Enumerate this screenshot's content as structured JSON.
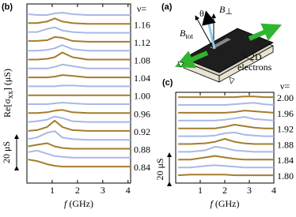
{
  "chart_data": [
    {
      "type": "line",
      "panel_label": "(b)",
      "legend_title": "ν=",
      "ylabel": [
        "Re[σ",
        "xx",
        "] (μS)"
      ],
      "xlabel": [
        "f",
        " (GHz)"
      ],
      "scale_bar": {
        "value": 20,
        "label": "20 μS"
      },
      "xlim": [
        0,
        4.1
      ],
      "xticks": [
        1,
        2,
        3,
        4
      ],
      "x": [
        0.05,
        0.4,
        0.8,
        1.1,
        1.4,
        1.8,
        2.4,
        3,
        3.6,
        4.1
      ],
      "series": [
        {
          "name": null,
          "color": "#a9b8e6",
          "values": [
            1,
            0.5,
            0.5,
            1.5,
            2,
            1,
            0.5,
            0.5,
            0.5,
            0.5
          ]
        },
        {
          "name": "1.16",
          "color": "#a57c2c",
          "values": [
            1,
            1,
            2,
            4,
            2,
            1,
            0.5,
            0.5,
            0.5,
            0.5
          ]
        },
        {
          "name": null,
          "color": "#a9b8e6",
          "values": [
            1,
            1,
            3,
            4,
            2,
            1,
            0.5,
            0.5,
            0.5,
            0.5
          ]
        },
        {
          "name": "1.12",
          "color": "#a57c2c",
          "values": [
            1,
            1,
            1.5,
            3.5,
            3,
            1,
            0.5,
            0.5,
            0.5,
            0.5
          ]
        },
        {
          "name": null,
          "color": "#a9b8e6",
          "values": [
            0.5,
            0.5,
            1,
            2,
            4,
            1.5,
            0.5,
            0.5,
            0.5,
            0.5
          ]
        },
        {
          "name": "1.08",
          "color": "#a57c2c",
          "values": [
            0.5,
            0.5,
            1,
            2,
            5,
            2,
            0.5,
            0.5,
            0.5,
            0.5
          ]
        },
        {
          "name": null,
          "color": "#a9b8e6",
          "values": [
            0.5,
            0.5,
            0.5,
            1.5,
            3,
            2,
            0.5,
            0.5,
            0.5,
            0.5
          ]
        },
        {
          "name": "1.04",
          "color": "#a57c2c",
          "values": [
            0.5,
            0.5,
            0.5,
            1,
            2,
            1.5,
            0.5,
            0.5,
            0.5,
            0.5
          ]
        },
        {
          "name": null,
          "color": "#a9b8e6",
          "values": [
            0.5,
            0.5,
            0.5,
            0.5,
            1,
            1,
            0.5,
            0.5,
            0.5,
            0.5
          ]
        },
        {
          "name": "1.00",
          "color": "#a57c2c",
          "values": [
            0.5,
            0.5,
            0.5,
            0.5,
            0.5,
            0.5,
            0.5,
            0.5,
            0.5,
            0.5
          ]
        },
        {
          "name": null,
          "color": "#a9b8e6",
          "values": [
            0.5,
            0.5,
            0.5,
            1,
            1.5,
            1,
            0.5,
            0.5,
            0.5,
            0.5
          ]
        },
        {
          "name": "0.96",
          "color": "#a57c2c",
          "values": [
            0.5,
            0.5,
            1,
            2,
            2.5,
            1,
            0.5,
            0.5,
            0.5,
            0.5
          ]
        },
        {
          "name": null,
          "color": "#a9b8e6",
          "values": [
            0.5,
            1,
            2,
            4,
            3,
            1,
            0.5,
            0.5,
            0.5,
            0.5
          ]
        },
        {
          "name": "0.92",
          "color": "#a57c2c",
          "values": [
            0.5,
            1,
            3,
            7,
            3,
            1,
            0.5,
            0.5,
            0.5,
            0.5
          ]
        },
        {
          "name": null,
          "color": "#a9b8e6",
          "values": [
            1,
            2,
            5,
            6,
            2,
            1,
            0.5,
            0.5,
            0.5,
            0.5
          ]
        },
        {
          "name": "0.88",
          "color": "#a57c2c",
          "values": [
            2,
            3,
            4,
            2,
            1,
            0.5,
            0.5,
            0.5,
            0.5,
            0.5
          ]
        },
        {
          "name": null,
          "color": "#a9b8e6",
          "values": [
            4,
            5,
            3,
            1.5,
            1,
            0.5,
            0.5,
            0.5,
            0.5,
            0.5
          ]
        },
        {
          "name": "0.84",
          "color": "#a57c2c",
          "values": [
            5,
            4,
            2,
            1,
            0.5,
            0.5,
            0.5,
            0.5,
            0.5,
            0.5
          ]
        }
      ]
    },
    {
      "type": "line",
      "panel_label": "(c)",
      "legend_title": "ν=",
      "xlabel": [
        "f",
        " (GHz)"
      ],
      "scale_bar": {
        "value": 20,
        "label": "20 μS"
      },
      "xlim": [
        0,
        4
      ],
      "xticks": [
        1,
        2,
        3,
        4
      ],
      "x": [
        0.1,
        0.6,
        1.2,
        1.6,
        2,
        2.4,
        2.8,
        3.2,
        3.6,
        4
      ],
      "series": [
        {
          "name": "2.00",
          "color": "#a57c2c",
          "values": [
            0.5,
            0.5,
            0.5,
            0.5,
            0.5,
            0.5,
            1,
            1,
            0.5,
            0.5
          ]
        },
        {
          "name": null,
          "color": "#a9b8e6",
          "values": [
            0.5,
            0.5,
            0.5,
            0.5,
            0.5,
            1,
            1.5,
            2,
            1,
            0.5
          ]
        },
        {
          "name": "1.96",
          "color": "#a57c2c",
          "values": [
            0.5,
            0.5,
            0.5,
            0.5,
            0.5,
            1,
            2,
            1.5,
            1,
            0.5
          ]
        },
        {
          "name": null,
          "color": "#a9b8e6",
          "values": [
            0.5,
            0.5,
            0.5,
            0.5,
            1,
            2,
            3,
            1.5,
            1,
            0.5
          ]
        },
        {
          "name": "1.92",
          "color": "#a57c2c",
          "values": [
            0.5,
            0.5,
            0.5,
            0.5,
            1.5,
            3,
            2,
            1,
            0.5,
            0.5
          ]
        },
        {
          "name": null,
          "color": "#a9b8e6",
          "values": [
            0.5,
            0.5,
            0.5,
            1,
            2.5,
            3,
            1.5,
            1,
            0.5,
            0.5
          ]
        },
        {
          "name": "1.88",
          "color": "#a57c2c",
          "values": [
            0.5,
            0.5,
            1,
            2,
            4,
            2,
            1,
            0.5,
            0.5,
            0.5
          ]
        },
        {
          "name": null,
          "color": "#a9b8e6",
          "values": [
            0.5,
            0.5,
            1.5,
            4,
            3,
            1.5,
            1,
            0.5,
            0.5,
            0.5
          ]
        },
        {
          "name": "1.84",
          "color": "#a57c2c",
          "values": [
            0.5,
            0.5,
            2,
            3,
            2,
            1,
            0.5,
            0.5,
            0.5,
            0.5
          ]
        },
        {
          "name": null,
          "color": "#a9b8e6",
          "values": [
            0.5,
            0.5,
            1.5,
            2,
            1.5,
            1,
            0.5,
            0.5,
            0.5,
            0.5
          ]
        },
        {
          "name": "1.80",
          "color": "#a57c2c",
          "values": [
            0.5,
            1,
            1,
            1,
            1,
            0.5,
            0.5,
            0.5,
            0.5,
            0.5
          ]
        }
      ]
    }
  ],
  "diagram": {
    "panel_label": "(a)",
    "b_tot": "B",
    "b_tot_sub": "tot",
    "theta": "θ",
    "b_perp": "B",
    "b_perp_sub": "⊥",
    "electrons_line1": "2D",
    "electrons_line2": "electrons"
  }
}
